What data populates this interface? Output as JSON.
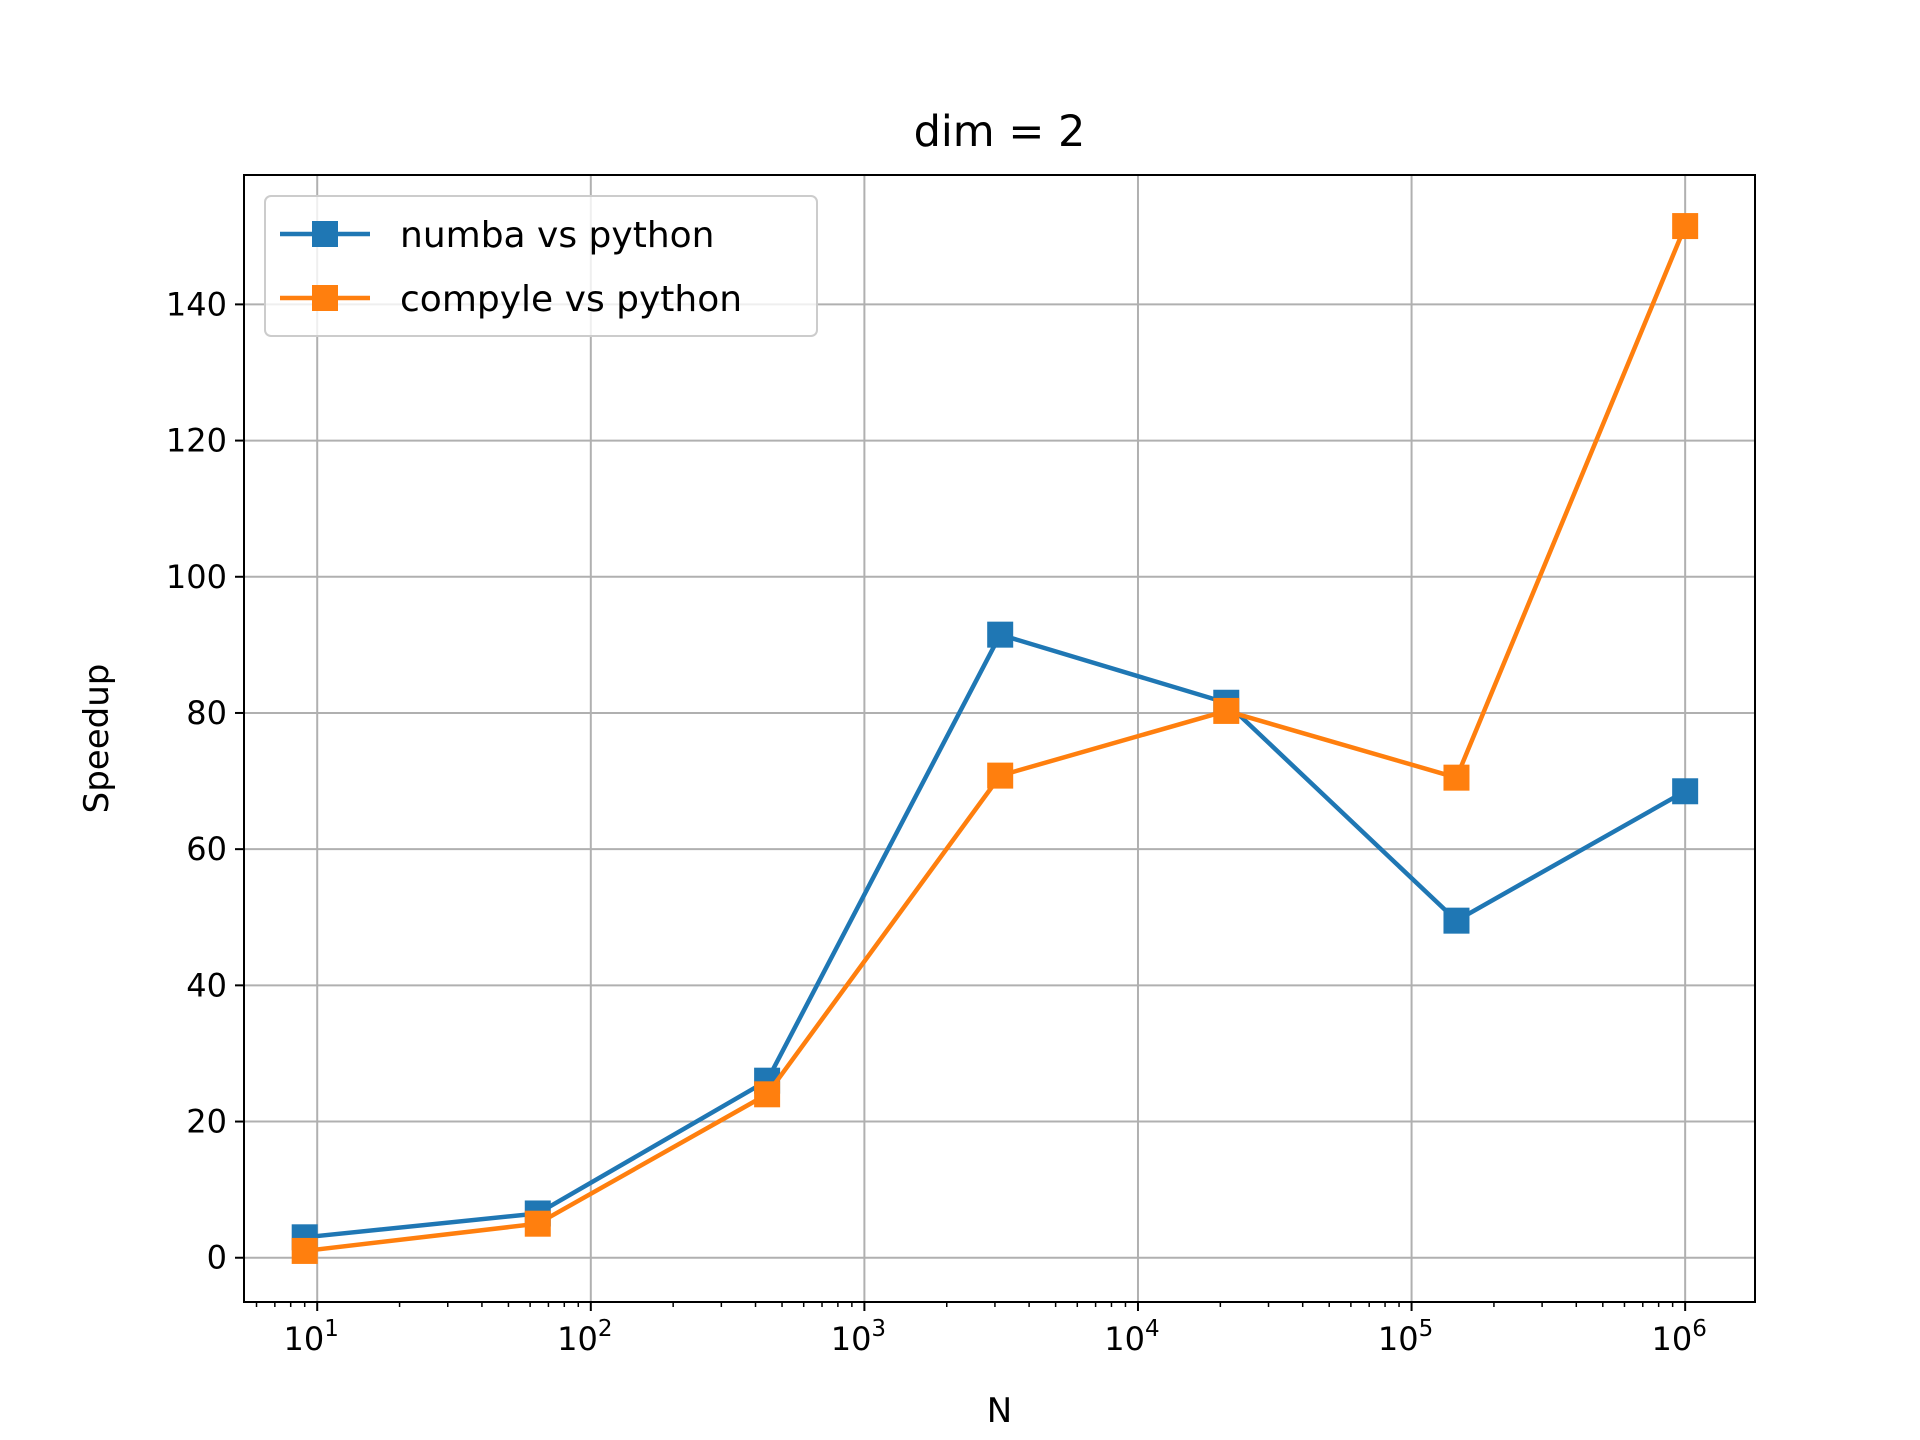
{
  "chart_data": {
    "type": "line",
    "title": "dim = 2",
    "xlabel": "N",
    "ylabel": "Speedup",
    "xscale": "log",
    "xlim": [
      5.4,
      1800000
    ],
    "ylim": [
      -6.5,
      159
    ],
    "grid": true,
    "legend_position": "upper left",
    "x_ticks": [
      {
        "value": 10,
        "base": "10",
        "exp": "1"
      },
      {
        "value": 100,
        "base": "10",
        "exp": "2"
      },
      {
        "value": 1000,
        "base": "10",
        "exp": "3"
      },
      {
        "value": 10000,
        "base": "10",
        "exp": "4"
      },
      {
        "value": 100000,
        "base": "10",
        "exp": "5"
      },
      {
        "value": 1000000,
        "base": "10",
        "exp": "6"
      }
    ],
    "y_ticks": [
      0,
      20,
      40,
      60,
      80,
      100,
      120,
      140
    ],
    "y_tick_labels": [
      "0",
      "20",
      "40",
      "60",
      "80",
      "100",
      "120",
      "140"
    ],
    "x": [
      9,
      64,
      441,
      3136,
      21025,
      145924,
      1000000
    ],
    "series": [
      {
        "name": "numba vs python",
        "color": "#1f77b4",
        "marker": "square",
        "values": [
          3.0,
          6.5,
          26.0,
          91.5,
          81.5,
          49.5,
          68.5
        ]
      },
      {
        "name": "compyle vs python",
        "color": "#ff7f0e",
        "marker": "square",
        "values": [
          1.0,
          5.0,
          24.0,
          70.8,
          80.3,
          70.5,
          151.5
        ]
      }
    ]
  }
}
